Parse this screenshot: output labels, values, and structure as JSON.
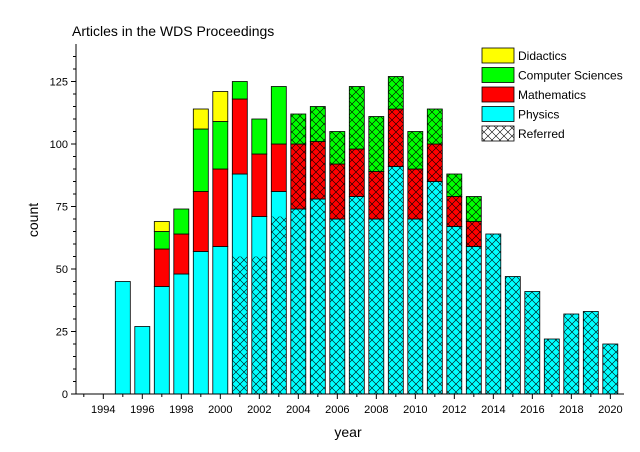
{
  "chart_data": {
    "type": "bar",
    "stacked": true,
    "title": "Articles in the WDS Proceedings",
    "xlabel": "year",
    "ylabel": "count",
    "xlim": [
      1992.6,
      2020.7
    ],
    "ylim": [
      0,
      140
    ],
    "x_ticks": [
      1994,
      1996,
      1998,
      2000,
      2002,
      2004,
      2006,
      2008,
      2010,
      2012,
      2014,
      2016,
      2018,
      2020
    ],
    "y_ticks": [
      0,
      25,
      50,
      75,
      100,
      125
    ],
    "x_tick_labels": [
      "1994",
      "1996",
      "1998",
      "2000",
      "2002",
      "2004",
      "2006",
      "2008",
      "2010",
      "2012",
      "2014",
      "2016",
      "2018",
      "2020"
    ],
    "y_tick_labels": [
      "0",
      "25",
      "50",
      "75",
      "100",
      "125"
    ],
    "grid": false,
    "legend_position": "top-right",
    "years": [
      1995,
      1996,
      1997,
      1998,
      1999,
      2000,
      2001,
      2002,
      2003,
      2004,
      2005,
      2006,
      2007,
      2008,
      2009,
      2010,
      2011,
      2012,
      2013,
      2014,
      2015,
      2016,
      2017,
      2018,
      2019,
      2020
    ],
    "series": [
      {
        "name": "Physics",
        "color": "#00FFFF",
        "values": [
          45,
          27,
          43,
          48,
          57,
          59,
          88,
          71,
          81,
          74,
          78,
          70,
          79,
          70,
          91,
          70,
          85,
          67,
          59,
          64,
          47,
          41,
          22,
          32,
          33,
          20
        ]
      },
      {
        "name": "Mathematics",
        "color": "#FF0000",
        "values": [
          0,
          0,
          15,
          16,
          24,
          31,
          30,
          25,
          19,
          26,
          23,
          22,
          19,
          19,
          23,
          20,
          15,
          12,
          10,
          0,
          0,
          0,
          0,
          0,
          0,
          0
        ]
      },
      {
        "name": "Computer Sciences",
        "color": "#00FF00",
        "values": [
          0,
          0,
          7,
          10,
          25,
          19,
          7,
          14,
          23,
          12,
          14,
          13,
          25,
          22,
          13,
          15,
          14,
          9,
          10,
          0,
          0,
          0,
          0,
          0,
          0,
          0
        ]
      },
      {
        "name": "Didactics",
        "color": "#FFFF00",
        "values": [
          0,
          0,
          4,
          0,
          8,
          12,
          0,
          0,
          0,
          0,
          0,
          0,
          0,
          0,
          0,
          0,
          0,
          0,
          0,
          0,
          0,
          0,
          0,
          0,
          0,
          0
        ]
      }
    ],
    "referred": {
      "label": "Referred",
      "physics_values": [
        0,
        0,
        0,
        0,
        0,
        0,
        55,
        55,
        71,
        74,
        78,
        70,
        79,
        70,
        91,
        70,
        85,
        67,
        59,
        64,
        47,
        41,
        22,
        32,
        33,
        20
      ],
      "total_values": [
        0,
        0,
        0,
        0,
        0,
        0,
        55,
        55,
        71,
        112,
        115,
        105,
        123,
        111,
        127,
        105,
        114,
        88,
        79,
        64,
        47,
        41,
        22,
        32,
        33,
        20
      ]
    },
    "legend": [
      "Didactics",
      "Computer Sciences",
      "Mathematics",
      "Physics",
      "Referred"
    ]
  }
}
